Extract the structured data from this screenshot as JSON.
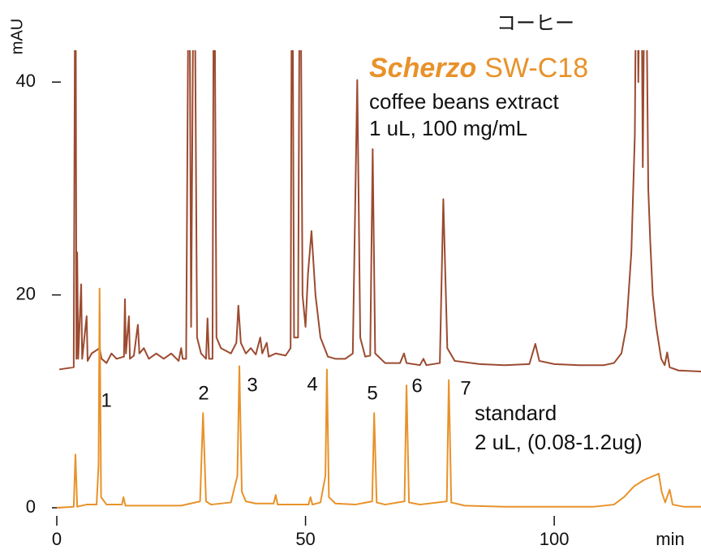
{
  "chart_data": {
    "type": "line",
    "title": "コーヒー",
    "subtitle": {
      "brand": "Scherzo",
      "model": "SW-C18"
    },
    "ylabel": "mAU",
    "xlabel": "min",
    "xlim": [
      0,
      129.5
    ],
    "ylim": [
      0,
      43
    ],
    "xticks": [
      0,
      50,
      100
    ],
    "yticks": [
      0,
      20,
      40
    ],
    "peak_labels": [
      "1",
      "2",
      "3",
      "4",
      "5",
      "6",
      "7"
    ],
    "series": [
      {
        "name": "coffee beans extract",
        "note": "1 uL, 100 mg/mL",
        "color": "#9c4a30",
        "x": [
          0.5,
          3.4,
          3.75,
          3.95,
          4.1,
          4.3,
          4.9,
          5.1,
          6,
          6.2,
          7,
          8.6,
          9,
          10,
          11,
          12,
          13.5,
          13.7,
          13.9,
          14.5,
          14.7,
          15.5,
          16.1,
          16.3,
          16.6,
          17.5,
          18.5,
          20,
          21.5,
          23,
          24.5,
          25,
          25.3,
          26,
          26.6,
          27,
          27.6,
          28.2,
          29,
          30,
          30.3,
          30.6,
          31.3,
          31.6,
          32.1,
          33,
          35,
          36.1,
          36.5,
          37,
          38,
          39,
          40,
          40.9,
          41.3,
          42.2,
          42.6,
          44,
          46,
          47,
          47.3,
          47.7,
          48.5,
          48.9,
          49.4,
          50,
          50.5,
          51.2,
          52,
          53,
          54.5,
          56,
          58,
          59.5,
          60.4,
          61,
          62,
          63,
          63.5,
          64,
          66,
          69,
          69.8,
          70.3,
          73,
          73.7,
          74.3,
          77,
          77.7,
          78.5,
          80,
          85,
          90,
          95,
          96.2,
          97,
          100,
          105,
          110,
          112,
          113.5,
          114.5,
          115.5,
          116.2,
          116.6,
          116.9,
          117.4,
          117.8,
          118.3,
          118.9,
          119.3,
          119.8,
          120.5,
          121.5,
          122.2,
          122.7,
          123.2,
          125,
          129.5
        ],
        "values": [
          13,
          13.2,
          60,
          14,
          24,
          14,
          21,
          14,
          18,
          13.8,
          14.5,
          15,
          14,
          13.6,
          14.5,
          14,
          14.2,
          19.6,
          14.5,
          18,
          14,
          14.3,
          16.5,
          17.2,
          14.5,
          15,
          14,
          14.5,
          14,
          14.5,
          13.8,
          15,
          14,
          14,
          60,
          17,
          60,
          16,
          14.5,
          14,
          17.8,
          14,
          14,
          60,
          16,
          15,
          14.5,
          15.5,
          19,
          15.5,
          14.5,
          15,
          14.4,
          16,
          14.5,
          15.5,
          14.2,
          14.5,
          14.3,
          15,
          60,
          16,
          16,
          60,
          20,
          17,
          22,
          26,
          20,
          16,
          14.2,
          14,
          14,
          14.5,
          40.2,
          16,
          14.2,
          14.3,
          33.7,
          14.5,
          13.6,
          13.6,
          14.5,
          13.6,
          13.4,
          14,
          13.4,
          13.6,
          29,
          15,
          13.8,
          13.5,
          13.4,
          13.5,
          15.4,
          13.8,
          13.5,
          13.4,
          13.4,
          13.6,
          14.5,
          17,
          24,
          35,
          60,
          40,
          60,
          32,
          60,
          30,
          25,
          20,
          17,
          14,
          13.4,
          14.6,
          13.2,
          12.9,
          12.8
        ]
      },
      {
        "name": "standard",
        "note": "2 uL, (0.08-1.2ug)",
        "color": "#e8922a",
        "x": [
          0,
          3.4,
          3.75,
          4.1,
          6,
          8,
          8.4,
          8.6,
          8.9,
          10,
          13.1,
          13.4,
          13.8,
          20,
          25,
          28.8,
          29.4,
          30,
          31,
          35,
          36.3,
          36.7,
          37.2,
          38,
          40,
          43.6,
          44,
          44.4,
          47,
          50.6,
          51,
          51.4,
          53,
          54,
          54.3,
          54.7,
          56,
          60,
          63.4,
          63.8,
          64.3,
          66,
          69.9,
          70.3,
          70.8,
          73,
          78.4,
          78.8,
          79.3,
          82,
          90,
          100,
          108,
          112,
          114,
          116,
          118,
          120,
          121,
          121.6,
          122.3,
          123.2,
          123.8,
          126,
          129.5
        ],
        "values": [
          0,
          0.1,
          5,
          0.1,
          0.3,
          0.3,
          4,
          20.6,
          1,
          0.3,
          0.3,
          1,
          0.2,
          0.2,
          0.2,
          0.6,
          8.9,
          0.6,
          0.3,
          0.5,
          3,
          13.3,
          1.5,
          0.6,
          0.4,
          0.4,
          1.2,
          0.3,
          0.3,
          0.3,
          1,
          0.3,
          0.5,
          3,
          13,
          1,
          0.4,
          0.3,
          0.6,
          8.9,
          0.5,
          0.3,
          0.6,
          11.5,
          0.5,
          0.3,
          0.6,
          12,
          0.5,
          0.2,
          0.1,
          0.1,
          0.1,
          0.3,
          1,
          2,
          2.6,
          3,
          3.2,
          1.5,
          0.5,
          1.7,
          0.3,
          0.1,
          0.1
        ]
      }
    ]
  }
}
